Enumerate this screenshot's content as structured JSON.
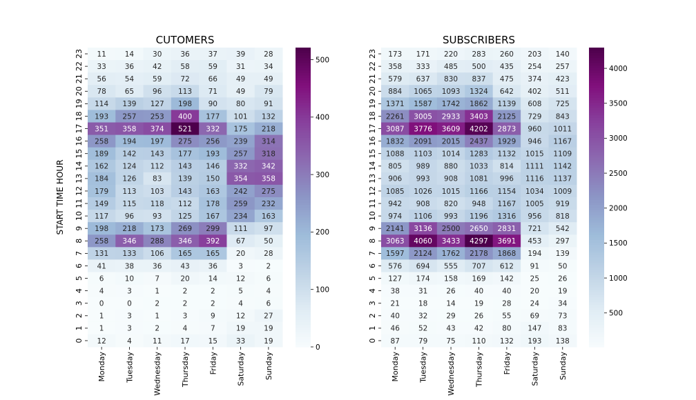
{
  "chart_data": [
    {
      "type": "heatmap",
      "title": "CUTOMERS",
      "xlabel": "",
      "ylabel": "START TIME HOUR",
      "columns": [
        "Monday",
        "Tuesday",
        "Wednesday",
        "Thursday",
        "Friday",
        "Saturday",
        "Sunday"
      ],
      "rows_top_to_bottom": [
        "23",
        "22",
        "21",
        "20",
        "19",
        "18",
        "17",
        "16",
        "15",
        "14",
        "13",
        "12",
        "11",
        "10",
        "9",
        "8",
        "7",
        "6",
        "5",
        "4",
        "3",
        "2",
        "1",
        "0"
      ],
      "values": [
        [
          11,
          14,
          30,
          36,
          37,
          39,
          28
        ],
        [
          33,
          36,
          42,
          58,
          59,
          31,
          34
        ],
        [
          56,
          54,
          59,
          72,
          66,
          49,
          49
        ],
        [
          78,
          65,
          96,
          113,
          71,
          49,
          79
        ],
        [
          114,
          139,
          127,
          198,
          90,
          80,
          91
        ],
        [
          193,
          257,
          253,
          400,
          177,
          101,
          132
        ],
        [
          351,
          358,
          374,
          521,
          332,
          175,
          218
        ],
        [
          258,
          194,
          197,
          275,
          256,
          239,
          314
        ],
        [
          189,
          142,
          143,
          177,
          193,
          257,
          318
        ],
        [
          162,
          124,
          112,
          143,
          146,
          332,
          342
        ],
        [
          184,
          126,
          83,
          139,
          150,
          354,
          358
        ],
        [
          179,
          113,
          103,
          143,
          163,
          242,
          275
        ],
        [
          149,
          115,
          118,
          112,
          178,
          259,
          232
        ],
        [
          117,
          96,
          93,
          125,
          167,
          234,
          163
        ],
        [
          198,
          218,
          173,
          269,
          299,
          111,
          97
        ],
        [
          258,
          346,
          288,
          346,
          392,
          67,
          50
        ],
        [
          131,
          133,
          106,
          165,
          165,
          20,
          28
        ],
        [
          41,
          38,
          36,
          43,
          36,
          3,
          2
        ],
        [
          6,
          10,
          7,
          20,
          14,
          12,
          6
        ],
        [
          4,
          3,
          1,
          2,
          2,
          5,
          4
        ],
        [
          0,
          0,
          2,
          2,
          2,
          4,
          6
        ],
        [
          1,
          3,
          1,
          3,
          9,
          12,
          27
        ],
        [
          1,
          3,
          2,
          4,
          7,
          19,
          19
        ],
        [
          12,
          4,
          11,
          17,
          15,
          33,
          19
        ]
      ],
      "colorbar": {
        "min": 0,
        "max": 521,
        "ticks": [
          0,
          100,
          200,
          300,
          400,
          500
        ]
      },
      "colormap": "BuPu"
    },
    {
      "type": "heatmap",
      "title": "SUBSCRIBERS",
      "xlabel": "",
      "ylabel": "",
      "columns": [
        "Monday",
        "Tuesday",
        "Wednesday",
        "Thursday",
        "Friday",
        "Saturday",
        "Sunday"
      ],
      "rows_top_to_bottom": [
        "23",
        "22",
        "21",
        "20",
        "19",
        "18",
        "17",
        "16",
        "15",
        "14",
        "13",
        "12",
        "11",
        "10",
        "9",
        "8",
        "7",
        "6",
        "5",
        "4",
        "3",
        "2",
        "1",
        "0"
      ],
      "values": [
        [
          173,
          171,
          220,
          283,
          260,
          203,
          140
        ],
        [
          358,
          333,
          485,
          500,
          435,
          254,
          257
        ],
        [
          579,
          637,
          830,
          837,
          475,
          374,
          423
        ],
        [
          884,
          1065,
          1093,
          1324,
          642,
          402,
          511
        ],
        [
          1371,
          1587,
          1742,
          1862,
          1139,
          608,
          725
        ],
        [
          2261,
          3005,
          2933,
          3403,
          2125,
          729,
          843
        ],
        [
          3087,
          3776,
          3609,
          4202,
          2873,
          960,
          1011
        ],
        [
          1832,
          2091,
          2015,
          2437,
          1929,
          946,
          1167
        ],
        [
          1088,
          1103,
          1014,
          1283,
          1132,
          1015,
          1109
        ],
        [
          805,
          989,
          880,
          1033,
          814,
          1111,
          1142
        ],
        [
          906,
          993,
          908,
          1081,
          996,
          1116,
          1137
        ],
        [
          1085,
          1026,
          1015,
          1166,
          1154,
          1034,
          1009
        ],
        [
          942,
          908,
          820,
          948,
          1167,
          1005,
          919
        ],
        [
          974,
          1106,
          993,
          1196,
          1316,
          956,
          818
        ],
        [
          2141,
          3136,
          2500,
          2650,
          2831,
          721,
          542
        ],
        [
          3063,
          4060,
          3433,
          4297,
          3691,
          453,
          297
        ],
        [
          1597,
          2124,
          1762,
          2178,
          1868,
          194,
          139
        ],
        [
          576,
          694,
          555,
          707,
          612,
          91,
          50
        ],
        [
          127,
          174,
          158,
          169,
          142,
          25,
          26
        ],
        [
          38,
          31,
          26,
          40,
          40,
          20,
          19
        ],
        [
          21,
          18,
          14,
          19,
          28,
          24,
          34
        ],
        [
          40,
          32,
          29,
          26,
          55,
          69,
          73
        ],
        [
          46,
          52,
          43,
          42,
          80,
          147,
          83
        ],
        [
          87,
          79,
          75,
          110,
          132,
          193,
          138
        ]
      ],
      "colorbar": {
        "min": 14,
        "max": 4297,
        "ticks": [
          500,
          1000,
          1500,
          2000,
          2500,
          3000,
          3500,
          4000
        ]
      },
      "colormap": "BuPu"
    }
  ]
}
